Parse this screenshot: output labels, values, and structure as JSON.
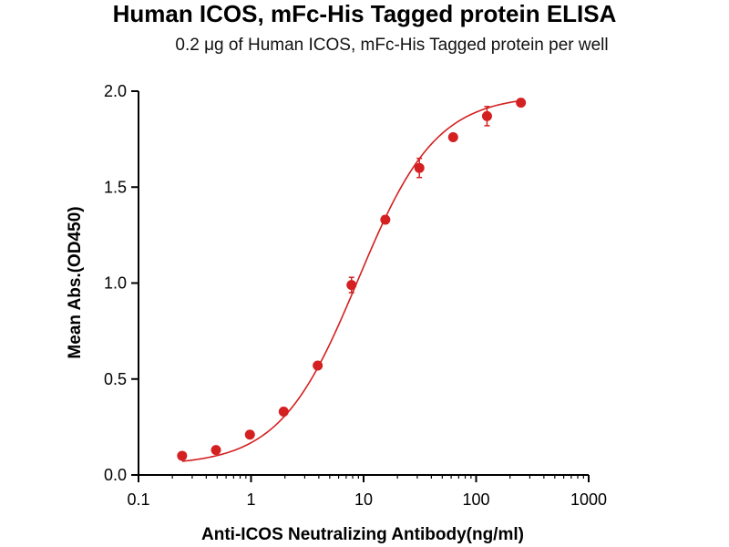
{
  "chart_data": {
    "type": "scatter",
    "title": "Human ICOS,  mFc-His Tagged protein ELISA",
    "subtitle": "0.2 μg of Human ICOS, mFc-His Tagged protein per well",
    "xlabel": "Anti-ICOS Neutralizing Antibody(ng/ml)",
    "ylabel": "Mean Abs.(OD450)",
    "x_scale": "log",
    "xlim": [
      0.1,
      1000
    ],
    "ylim": [
      0.0,
      2.0
    ],
    "x_ticks": [
      {
        "value": 0.1,
        "label": "0.1"
      },
      {
        "value": 1,
        "label": "1"
      },
      {
        "value": 10,
        "label": "10"
      },
      {
        "value": 100,
        "label": "100"
      },
      {
        "value": 1000,
        "label": "1000"
      }
    ],
    "y_ticks": [
      {
        "value": 0.0,
        "label": "0.0"
      },
      {
        "value": 0.5,
        "label": "0.5"
      },
      {
        "value": 1.0,
        "label": "1.0"
      },
      {
        "value": 1.5,
        "label": "1.5"
      },
      {
        "value": 2.0,
        "label": "2.0"
      }
    ],
    "grid": false,
    "legend": "none",
    "series_color": "#d42020",
    "points": [
      {
        "x": 0.244,
        "y": 0.1,
        "err": 0.01
      },
      {
        "x": 0.488,
        "y": 0.13,
        "err": 0.01
      },
      {
        "x": 0.977,
        "y": 0.21,
        "err": 0.01
      },
      {
        "x": 1.95,
        "y": 0.33,
        "err": 0.02
      },
      {
        "x": 3.91,
        "y": 0.57,
        "err": 0.01
      },
      {
        "x": 7.81,
        "y": 0.99,
        "err": 0.04
      },
      {
        "x": 15.6,
        "y": 1.33,
        "err": 0.02
      },
      {
        "x": 31.3,
        "y": 1.6,
        "err": 0.05
      },
      {
        "x": 62.5,
        "y": 1.76,
        "err": 0.01
      },
      {
        "x": 125,
        "y": 1.87,
        "err": 0.05
      },
      {
        "x": 250,
        "y": 1.94,
        "err": 0.01
      }
    ],
    "fit": {
      "model": "4PL",
      "bottom": 0.05,
      "top": 1.98,
      "ec50": 8.9,
      "hill": 1.25
    }
  }
}
